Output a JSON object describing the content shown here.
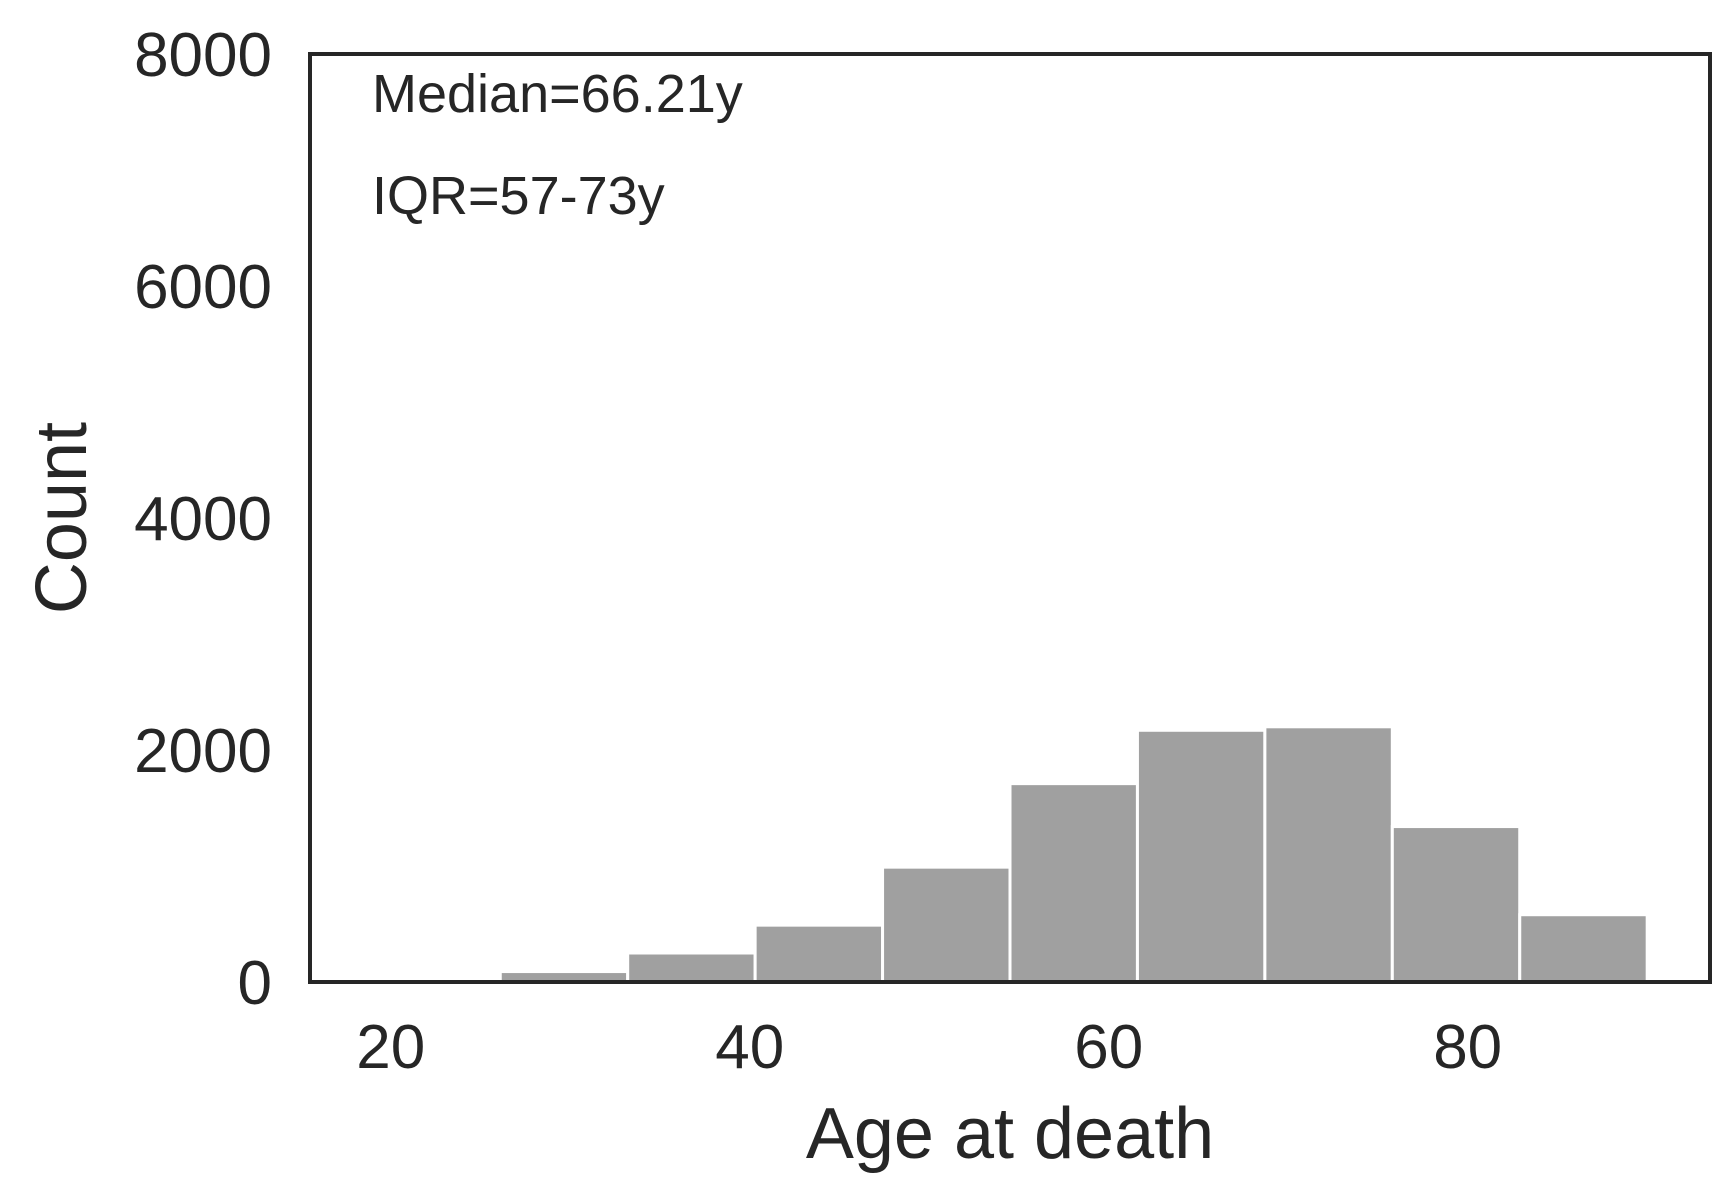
{
  "chart_data": {
    "type": "bar",
    "xlabel": "Age at death",
    "ylabel": "Count",
    "xlim": [
      15.5,
      93.5
    ],
    "ylim": [
      0,
      8000
    ],
    "xticks": [
      20,
      40,
      60,
      80
    ],
    "yticks": [
      0,
      2000,
      4000,
      6000,
      8000
    ],
    "bins": [
      {
        "x0": 19.0,
        "x1": 26.1,
        "count": 10
      },
      {
        "x0": 26.1,
        "x1": 33.2,
        "count": 90
      },
      {
        "x0": 33.2,
        "x1": 40.3,
        "count": 250
      },
      {
        "x0": 40.3,
        "x1": 47.4,
        "count": 490
      },
      {
        "x0": 47.4,
        "x1": 54.5,
        "count": 990
      },
      {
        "x0": 54.5,
        "x1": 61.6,
        "count": 1710
      },
      {
        "x0": 61.6,
        "x1": 68.7,
        "count": 2170
      },
      {
        "x0": 68.7,
        "x1": 75.8,
        "count": 2200
      },
      {
        "x0": 75.8,
        "x1": 82.9,
        "count": 1340
      },
      {
        "x0": 82.9,
        "x1": 90.0,
        "count": 580
      }
    ],
    "annotations": [
      "Median=66.21y",
      "IQR=57-73y"
    ],
    "grid": false,
    "bar_color": "#a0a0a0"
  }
}
